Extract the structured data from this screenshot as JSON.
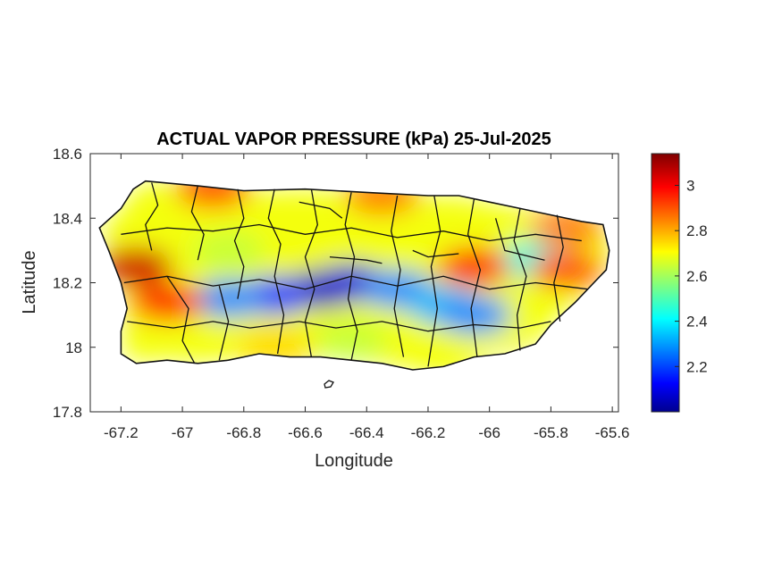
{
  "chart_data": {
    "type": "heatmap",
    "title": "ACTUAL VAPOR PRESSURE (kPa) 25-Jul-2025",
    "xlabel": "Longitude",
    "ylabel": "Latitude",
    "xlim": [
      -67.3,
      -65.58
    ],
    "ylim": [
      17.8,
      18.6
    ],
    "xticks": [
      -67.2,
      -67,
      -66.8,
      -66.6,
      -66.4,
      -66.2,
      -66,
      -65.8,
      -65.6
    ],
    "xtick_labels": [
      "-67.2",
      "-67",
      "-66.8",
      "-66.6",
      "-66.4",
      "-66.2",
      "-66",
      "-65.8",
      "-65.6"
    ],
    "yticks": [
      17.8,
      18,
      18.2,
      18.4,
      18.6
    ],
    "ytick_labels": [
      "17.8",
      "18",
      "18.2",
      "18.4",
      "18.6"
    ],
    "colorbar": {
      "colormap": "jet",
      "range": [
        2.0,
        3.14
      ],
      "ticks": [
        2.2,
        2.4,
        2.6,
        2.8,
        3
      ],
      "tick_labels": [
        "2.2",
        "2.4",
        "2.6",
        "2.8",
        "3"
      ]
    },
    "field_features": [
      {
        "lon": -66.55,
        "lat": 18.18,
        "value": 2.05
      },
      {
        "lon": -66.45,
        "lat": 18.2,
        "value": 2.1
      },
      {
        "lon": -66.7,
        "lat": 18.16,
        "value": 2.2
      },
      {
        "lon": -66.85,
        "lat": 18.15,
        "value": 2.3
      },
      {
        "lon": -66.3,
        "lat": 18.18,
        "value": 2.3
      },
      {
        "lon": -66.15,
        "lat": 18.13,
        "value": 2.35
      },
      {
        "lon": -66.05,
        "lat": 18.1,
        "value": 2.3
      },
      {
        "lon": -65.85,
        "lat": 18.27,
        "value": 2.45
      },
      {
        "lon": -67.15,
        "lat": 18.25,
        "value": 3.05
      },
      {
        "lon": -67.05,
        "lat": 18.14,
        "value": 2.95
      },
      {
        "lon": -66.05,
        "lat": 18.25,
        "value": 2.95
      },
      {
        "lon": -65.75,
        "lat": 18.24,
        "value": 2.9
      },
      {
        "lon": -66.9,
        "lat": 18.49,
        "value": 2.9
      },
      {
        "lon": -66.35,
        "lat": 18.47,
        "value": 2.85
      },
      {
        "lon": -65.75,
        "lat": 18.37,
        "value": 2.85
      },
      {
        "lon": -66.85,
        "lat": 18.3,
        "value": 2.65
      },
      {
        "lon": -66.7,
        "lat": 18.0,
        "value": 2.75
      },
      {
        "lon": -66.45,
        "lat": 18.02,
        "value": 2.65
      },
      {
        "lon": -66.15,
        "lat": 17.97,
        "value": 2.7
      }
    ]
  }
}
